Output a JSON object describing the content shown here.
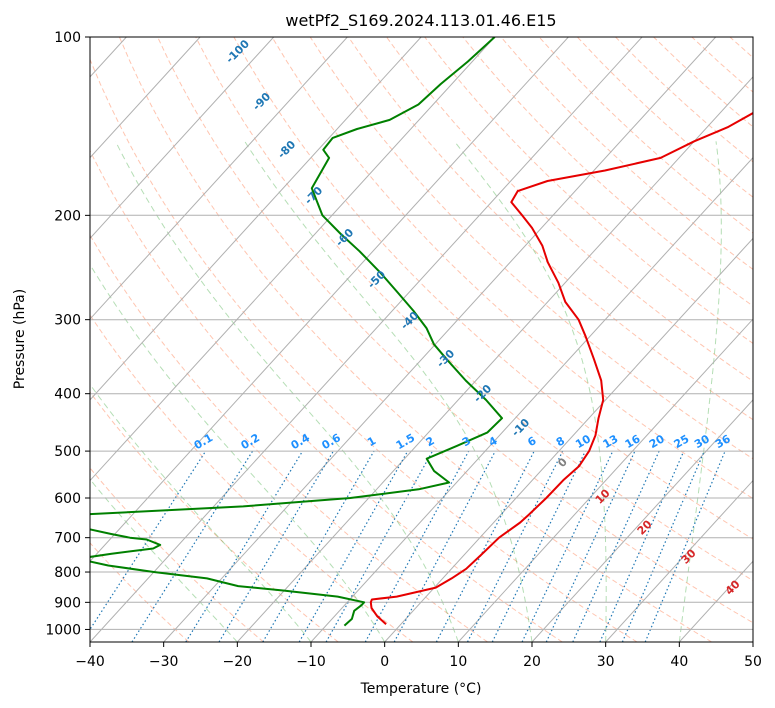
{
  "chart_data": {
    "type": "line",
    "title": "wetPf2_S169.2024.113.01.46.E15",
    "xlabel": "Temperature (°C)",
    "ylabel": "Pressure (hPa)",
    "xlim": [
      -40,
      50
    ],
    "ylim": [
      1050,
      100
    ],
    "y_scale": "log",
    "x_ticks": [
      -40,
      -30,
      -20,
      -10,
      0,
      10,
      20,
      30,
      40,
      50
    ],
    "y_ticks": [
      1000,
      900,
      800,
      700,
      600,
      500,
      400,
      300,
      200,
      100
    ],
    "grid": true,
    "colors": {
      "temperature": "#e60000",
      "dewpoint": "#008000",
      "isotherm": "#b0b0b0",
      "dry_adiabat": "#ff7f50",
      "moist_adiabat": "#2ca02c",
      "mixing_ratio": "#1f77b4",
      "isotherm_label": "#1f77b4",
      "moist_label": "#d62728",
      "mixing_label": "#1e90ff",
      "zero_label": "#808080",
      "dry_label_brown": "#c8a07a"
    },
    "series": [
      {
        "key": "temperature",
        "points": [
          [
            980,
            -2.0
          ],
          [
            950,
            -4.2
          ],
          [
            920,
            -6.0
          ],
          [
            900,
            -6.8
          ],
          [
            890,
            -7.0
          ],
          [
            880,
            -4.0
          ],
          [
            850,
            0.2
          ],
          [
            820,
            1.2
          ],
          [
            790,
            2.0
          ],
          [
            750,
            2.3
          ],
          [
            700,
            2.6
          ],
          [
            660,
            3.6
          ],
          [
            640,
            3.8
          ],
          [
            600,
            4.1
          ],
          [
            560,
            4.2
          ],
          [
            530,
            4.6
          ],
          [
            500,
            4.1
          ],
          [
            470,
            3.0
          ],
          [
            440,
            1.3
          ],
          [
            410,
            -0.3
          ],
          [
            380,
            -3.0
          ],
          [
            350,
            -6.6
          ],
          [
            320,
            -10.6
          ],
          [
            300,
            -13.6
          ],
          [
            280,
            -17.6
          ],
          [
            260,
            -20.9
          ],
          [
            240,
            -24.9
          ],
          [
            225,
            -27.7
          ],
          [
            210,
            -31.3
          ],
          [
            200,
            -34.2
          ],
          [
            190,
            -37.3
          ],
          [
            182,
            -37.8
          ],
          [
            175,
            -35.0
          ],
          [
            168,
            -28.5
          ],
          [
            160,
            -22.5
          ],
          [
            150,
            -20.0
          ],
          [
            142,
            -17.2
          ],
          [
            133,
            -15.2
          ],
          [
            125,
            -14.2
          ],
          [
            118,
            -15.0
          ],
          [
            110,
            -16.0
          ],
          [
            105,
            -17.8
          ],
          [
            100,
            -20.0
          ]
        ]
      },
      {
        "key": "dewpoint",
        "points": [
          [
            985,
            -7.5
          ],
          [
            960,
            -7.3
          ],
          [
            930,
            -8.0
          ],
          [
            910,
            -7.7
          ],
          [
            900,
            -7.7
          ],
          [
            880,
            -12.0
          ],
          [
            860,
            -20.0
          ],
          [
            845,
            -26.8
          ],
          [
            820,
            -32.0
          ],
          [
            800,
            -40.0
          ],
          [
            780,
            -47.0
          ],
          [
            760,
            -52.0
          ],
          [
            745,
            -48.0
          ],
          [
            730,
            -43.0
          ],
          [
            720,
            -42.5
          ],
          [
            705,
            -45.0
          ],
          [
            700,
            -47.5
          ],
          [
            690,
            -50.5
          ],
          [
            650,
            -62.0
          ],
          [
            640,
            -57.0
          ],
          [
            620,
            -36.0
          ],
          [
            600,
            -22.5
          ],
          [
            580,
            -14.3
          ],
          [
            565,
            -11.0
          ],
          [
            540,
            -14.5
          ],
          [
            515,
            -17.0
          ],
          [
            490,
            -14.5
          ],
          [
            465,
            -12.0
          ],
          [
            440,
            -11.8
          ],
          [
            410,
            -16.2
          ],
          [
            380,
            -21.4
          ],
          [
            350,
            -26.6
          ],
          [
            330,
            -30.2
          ],
          [
            310,
            -33.2
          ],
          [
            290,
            -37.1
          ],
          [
            270,
            -41.5
          ],
          [
            250,
            -46.3
          ],
          [
            230,
            -51.8
          ],
          [
            215,
            -56.5
          ],
          [
            200,
            -61.3
          ],
          [
            180,
            -66.1
          ],
          [
            160,
            -67.5
          ],
          [
            155,
            -69.3
          ],
          [
            148,
            -69.5
          ],
          [
            143,
            -67.3
          ],
          [
            138,
            -64.0
          ],
          [
            130,
            -62.0
          ],
          [
            120,
            -61.5
          ],
          [
            110,
            -60.6
          ],
          [
            100,
            -60.0
          ]
        ]
      }
    ],
    "isotherm_labels": [
      {
        "t": -100,
        "text": "-100"
      },
      {
        "t": -90,
        "text": "-90"
      },
      {
        "t": -80,
        "text": "-80"
      },
      {
        "t": -70,
        "text": "-70"
      },
      {
        "t": -60,
        "text": "-60"
      },
      {
        "t": -50,
        "text": "-50"
      },
      {
        "t": -40,
        "text": "-40"
      },
      {
        "t": -30,
        "text": "-30"
      },
      {
        "t": -20,
        "text": "-20"
      },
      {
        "t": -10,
        "text": "-10"
      }
    ],
    "zero_label": {
      "t": 0,
      "text": "0"
    },
    "moist_labels": [
      {
        "t": 10,
        "text": "10"
      },
      {
        "t": 20,
        "text": "20"
      },
      {
        "t": 30,
        "text": "30"
      },
      {
        "t": 40,
        "text": "40"
      }
    ],
    "mixing_ratio_labels": [
      {
        "w": 0.1,
        "text": "0.1"
      },
      {
        "w": 0.2,
        "text": "0.2"
      },
      {
        "w": 0.4,
        "text": "0.4"
      },
      {
        "w": 0.6,
        "text": "0.6"
      },
      {
        "w": 1,
        "text": "1"
      },
      {
        "w": 1.5,
        "text": "1.5"
      },
      {
        "w": 2,
        "text": "2"
      },
      {
        "w": 3,
        "text": "3"
      },
      {
        "w": 4,
        "text": "4"
      },
      {
        "w": 6,
        "text": "6"
      },
      {
        "w": 8,
        "text": "8"
      },
      {
        "w": 10,
        "text": "10"
      },
      {
        "w": 13,
        "text": "13"
      },
      {
        "w": 16,
        "text": "16"
      },
      {
        "w": 20,
        "text": "20"
      },
      {
        "w": 25,
        "text": "25"
      },
      {
        "w": 30,
        "text": "30"
      },
      {
        "w": 36,
        "text": "36"
      }
    ]
  }
}
